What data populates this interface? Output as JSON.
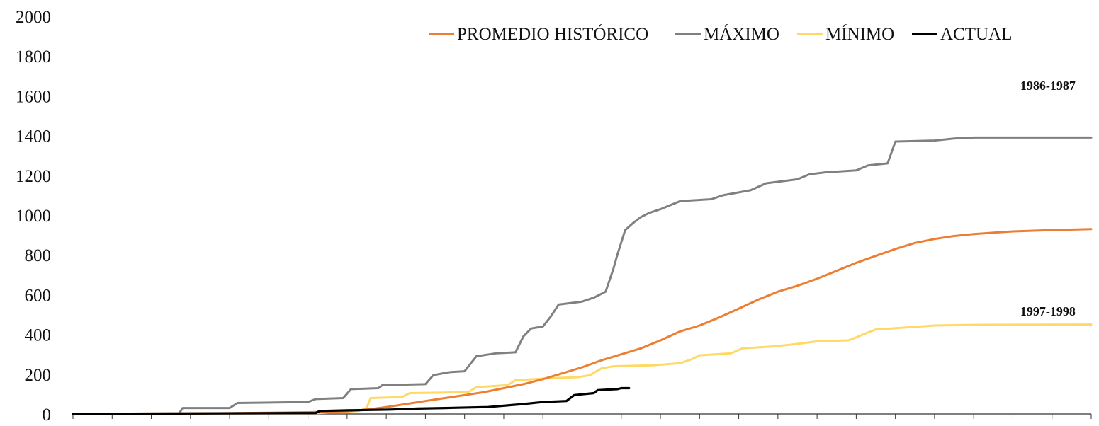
{
  "chart_data": {
    "type": "line",
    "title": "",
    "xlabel": "",
    "ylabel": "",
    "ylim": [
      0,
      2000
    ],
    "yticks": [
      "0",
      "200",
      "400",
      "600",
      "800",
      "1000",
      "1200",
      "1400",
      "1600",
      "1800",
      "2000"
    ],
    "x_ticks_count": 26,
    "x_range": [
      0,
      26
    ],
    "legend_position": "top-center",
    "grid": false,
    "series": [
      {
        "name": "PROMEDIO HISTÓRICO",
        "color": "#ED7D31",
        "points": [
          [
            0,
            0
          ],
          [
            2,
            2
          ],
          [
            4,
            4
          ],
          [
            5,
            6
          ],
          [
            6,
            9
          ],
          [
            7,
            14
          ],
          [
            7.5,
            22
          ],
          [
            8,
            35
          ],
          [
            8.5,
            50
          ],
          [
            9,
            65
          ],
          [
            9.5,
            80
          ],
          [
            10,
            95
          ],
          [
            10.5,
            110
          ],
          [
            11,
            130
          ],
          [
            11.5,
            150
          ],
          [
            12,
            175
          ],
          [
            12.5,
            205
          ],
          [
            13,
            235
          ],
          [
            13.5,
            270
          ],
          [
            14,
            300
          ],
          [
            14.5,
            330
          ],
          [
            15,
            370
          ],
          [
            15.5,
            415
          ],
          [
            16,
            445
          ],
          [
            16.5,
            485
          ],
          [
            17,
            530
          ],
          [
            17.5,
            575
          ],
          [
            18,
            615
          ],
          [
            18.5,
            645
          ],
          [
            19,
            680
          ],
          [
            19.5,
            720
          ],
          [
            20,
            760
          ],
          [
            20.5,
            795
          ],
          [
            21,
            830
          ],
          [
            21.5,
            860
          ],
          [
            22,
            880
          ],
          [
            22.5,
            895
          ],
          [
            23,
            905
          ],
          [
            24,
            918
          ],
          [
            25,
            925
          ],
          [
            26,
            930
          ]
        ]
      },
      {
        "name": "MÁXIMO",
        "color": "#808080",
        "points": [
          [
            0,
            0
          ],
          [
            2.7,
            0
          ],
          [
            2.8,
            30
          ],
          [
            4,
            30
          ],
          [
            4.2,
            55
          ],
          [
            6,
            60
          ],
          [
            6.2,
            75
          ],
          [
            6.9,
            80
          ],
          [
            7.1,
            125
          ],
          [
            7.8,
            130
          ],
          [
            7.9,
            145
          ],
          [
            9,
            150
          ],
          [
            9.2,
            195
          ],
          [
            9.6,
            210
          ],
          [
            10,
            215
          ],
          [
            10.3,
            290
          ],
          [
            10.8,
            305
          ],
          [
            11.3,
            310
          ],
          [
            11.5,
            390
          ],
          [
            11.7,
            430
          ],
          [
            12,
            440
          ],
          [
            12.2,
            490
          ],
          [
            12.4,
            550
          ],
          [
            13,
            565
          ],
          [
            13.3,
            585
          ],
          [
            13.6,
            615
          ],
          [
            13.8,
            730
          ],
          [
            13.9,
            800
          ],
          [
            14.1,
            925
          ],
          [
            14.3,
            960
          ],
          [
            14.5,
            990
          ],
          [
            14.7,
            1010
          ],
          [
            15,
            1030
          ],
          [
            15.5,
            1070
          ],
          [
            16.3,
            1080
          ],
          [
            16.6,
            1100
          ],
          [
            17.3,
            1125
          ],
          [
            17.7,
            1160
          ],
          [
            18.5,
            1180
          ],
          [
            18.8,
            1205
          ],
          [
            19.2,
            1215
          ],
          [
            20,
            1225
          ],
          [
            20.3,
            1250
          ],
          [
            20.8,
            1260
          ],
          [
            21,
            1370
          ],
          [
            22,
            1375
          ],
          [
            22.5,
            1385
          ],
          [
            23,
            1390
          ],
          [
            26,
            1390
          ]
        ]
      },
      {
        "name": "MÍNIMO",
        "color": "#FFD966",
        "points": [
          [
            0,
            0
          ],
          [
            6.3,
            5
          ],
          [
            7.3,
            15
          ],
          [
            7.5,
            30
          ],
          [
            7.6,
            80
          ],
          [
            8.4,
            85
          ],
          [
            8.6,
            105
          ],
          [
            9.5,
            108
          ],
          [
            10.1,
            110
          ],
          [
            10.3,
            135
          ],
          [
            11.1,
            145
          ],
          [
            11.3,
            170
          ],
          [
            12.2,
            180
          ],
          [
            12.9,
            185
          ],
          [
            13.2,
            195
          ],
          [
            13.5,
            230
          ],
          [
            13.8,
            240
          ],
          [
            14.8,
            245
          ],
          [
            15.5,
            255
          ],
          [
            15.8,
            275
          ],
          [
            16,
            295
          ],
          [
            16.8,
            305
          ],
          [
            17.1,
            330
          ],
          [
            17.9,
            340
          ],
          [
            18.4,
            350
          ],
          [
            19,
            365
          ],
          [
            19.8,
            370
          ],
          [
            20,
            385
          ],
          [
            20.3,
            410
          ],
          [
            20.5,
            425
          ],
          [
            20.9,
            430
          ],
          [
            22,
            445
          ],
          [
            23,
            448
          ],
          [
            26,
            450
          ]
        ]
      },
      {
        "name": "ACTUAL",
        "color": "#000000",
        "points": [
          [
            0,
            0
          ],
          [
            2.5,
            2
          ],
          [
            6.2,
            5
          ],
          [
            6.3,
            15
          ],
          [
            7,
            18
          ],
          [
            8.1,
            22
          ],
          [
            8.8,
            27
          ],
          [
            9.5,
            30
          ],
          [
            10.6,
            35
          ],
          [
            11.5,
            50
          ],
          [
            12,
            60
          ],
          [
            12.6,
            65
          ],
          [
            12.8,
            95
          ],
          [
            13.3,
            105
          ],
          [
            13.4,
            120
          ],
          [
            13.9,
            125
          ],
          [
            14,
            130
          ],
          [
            14.2,
            130
          ]
        ]
      }
    ],
    "annotations": [
      {
        "text": "1986-1987",
        "x": 25.6,
        "y": 1630
      },
      {
        "text": "1997-1998",
        "x": 25.6,
        "y": 495
      }
    ]
  }
}
